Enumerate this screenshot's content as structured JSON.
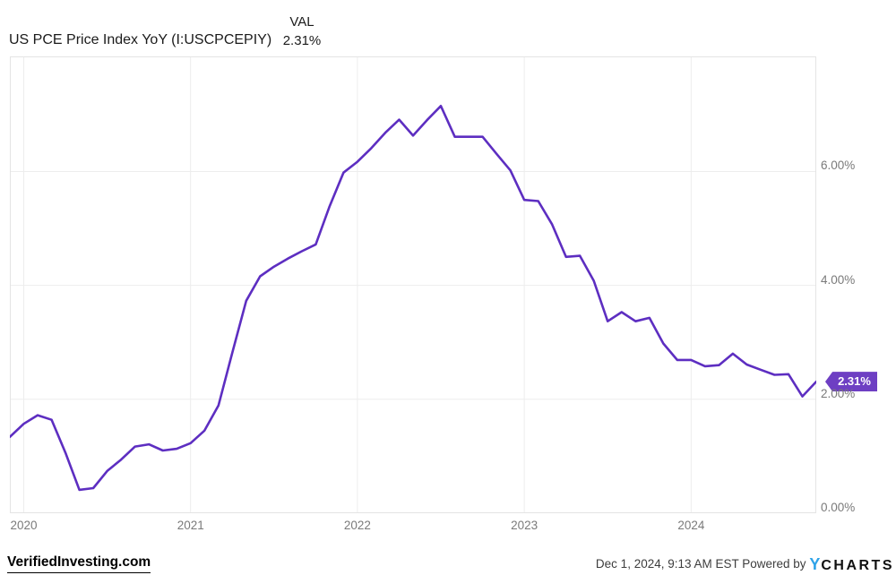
{
  "header": {
    "title": "US PCE Price Index YoY (I:USCPCEPIY)",
    "val_label": "VAL",
    "val_value": "2.31%"
  },
  "chart_data": {
    "type": "line",
    "series_name": "US PCE Price Index YoY",
    "unit": "percent",
    "x": [
      "2019-12",
      "2020-01",
      "2020-02",
      "2020-03",
      "2020-04",
      "2020-05",
      "2020-06",
      "2020-07",
      "2020-08",
      "2020-09",
      "2020-10",
      "2020-11",
      "2020-12",
      "2021-01",
      "2021-02",
      "2021-03",
      "2021-04",
      "2021-05",
      "2021-06",
      "2021-07",
      "2021-08",
      "2021-09",
      "2021-10",
      "2021-11",
      "2021-12",
      "2022-01",
      "2022-02",
      "2022-03",
      "2022-04",
      "2022-05",
      "2022-06",
      "2022-07",
      "2022-08",
      "2022-09",
      "2022-10",
      "2022-11",
      "2022-12",
      "2023-01",
      "2023-02",
      "2023-03",
      "2023-04",
      "2023-05",
      "2023-06",
      "2023-07",
      "2023-08",
      "2023-09",
      "2023-10",
      "2023-11",
      "2023-12",
      "2024-01",
      "2024-02",
      "2024-03",
      "2024-04",
      "2024-05",
      "2024-06",
      "2024-07",
      "2024-08",
      "2024-09",
      "2024-10"
    ],
    "values": [
      1.34,
      1.57,
      1.72,
      1.64,
      1.06,
      0.41,
      0.44,
      0.74,
      0.94,
      1.17,
      1.21,
      1.1,
      1.13,
      1.23,
      1.45,
      1.89,
      2.82,
      3.73,
      4.16,
      4.33,
      4.47,
      4.6,
      4.72,
      5.39,
      5.98,
      6.17,
      6.41,
      6.68,
      6.91,
      6.63,
      6.9,
      7.15,
      6.61,
      6.61,
      6.61,
      6.31,
      6.02,
      5.5,
      5.48,
      5.07,
      4.5,
      4.52,
      4.08,
      3.37,
      3.53,
      3.37,
      3.43,
      2.98,
      2.69,
      2.69,
      2.58,
      2.6,
      2.8,
      2.61,
      2.52,
      2.43,
      2.44,
      2.05,
      2.31
    ],
    "last_value_label": "2.31%",
    "xticks": {
      "labels": [
        "2020",
        "2021",
        "2022",
        "2023",
        "2024"
      ],
      "month_indices": [
        1,
        13,
        25,
        37,
        49
      ]
    },
    "yticks": [
      {
        "value": 0,
        "label": "0.00%"
      },
      {
        "value": 2,
        "label": "2.00%"
      },
      {
        "value": 4,
        "label": "4.00%"
      },
      {
        "value": 6,
        "label": "6.00%"
      }
    ],
    "ylim": [
      0,
      8.02
    ],
    "grid": true,
    "legend_position": "none",
    "line_color": "#5d2ec1",
    "badge_color": "#6e3fc3",
    "grid_color": "#ededed",
    "border_color": "#e4e4e4",
    "tick_label_color": "#7a7a7a"
  },
  "footer": {
    "left_brand": "VerifiedInvesting.com",
    "right_text": "Dec 1, 2024, 9:13 AM EST Powered by ",
    "logo_y": "Y",
    "logo_rest": "CHARTS"
  }
}
